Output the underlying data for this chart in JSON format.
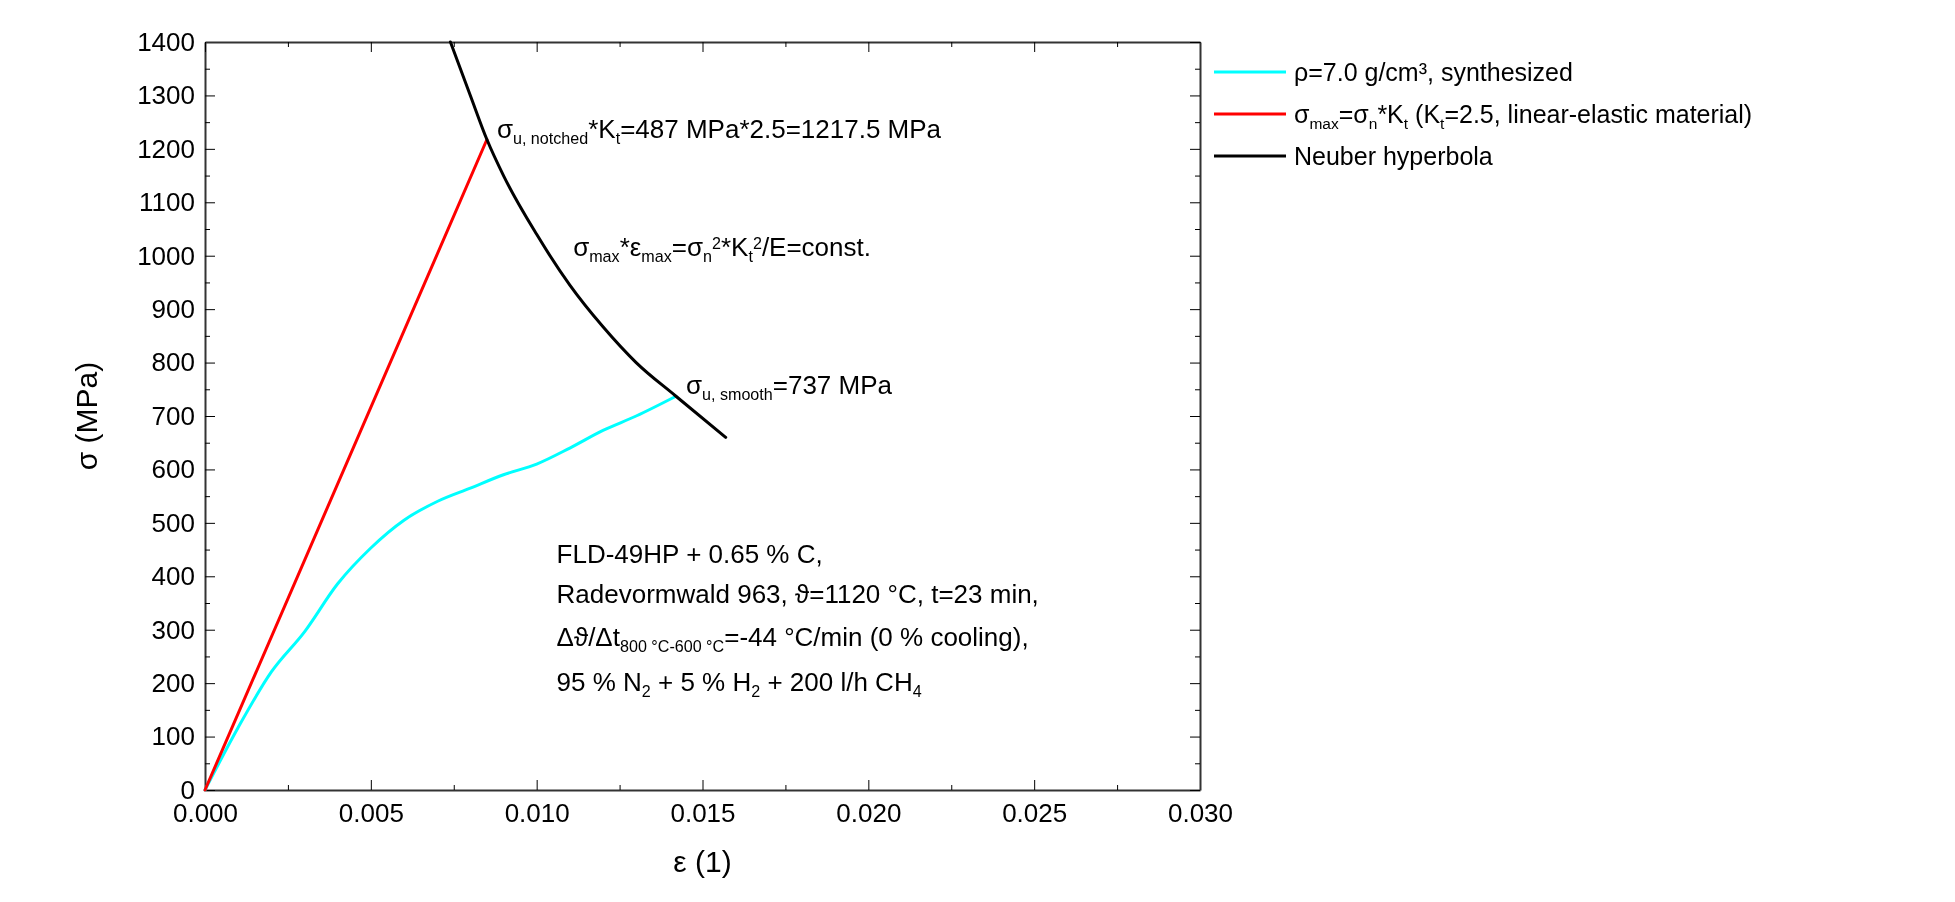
{
  "chart_data": {
    "type": "line",
    "xlabel": "ε (1)",
    "ylabel": "σ (MPa)",
    "xlim": [
      0,
      0.03
    ],
    "ylim": [
      0,
      1400
    ],
    "xticks": [
      {
        "value": 0,
        "label": "0.000"
      },
      {
        "value": 0.0025,
        "label": null
      },
      {
        "value": 0.005,
        "label": "0.005"
      },
      {
        "value": 0.0075,
        "label": null
      },
      {
        "value": 0.01,
        "label": "0.010"
      },
      {
        "value": 0.0125,
        "label": null
      },
      {
        "value": 0.015,
        "label": "0.015"
      },
      {
        "value": 0.0175,
        "label": null
      },
      {
        "value": 0.02,
        "label": "0.020"
      },
      {
        "value": 0.0225,
        "label": null
      },
      {
        "value": 0.025,
        "label": "0.025"
      },
      {
        "value": 0.0275,
        "label": null
      },
      {
        "value": 0.03,
        "label": "0.030"
      }
    ],
    "yticks": [
      0,
      {
        "value": 50,
        "label": null
      },
      100,
      {
        "value": 150,
        "label": null
      },
      200,
      {
        "value": 250,
        "label": null
      },
      300,
      {
        "value": 350,
        "label": null
      },
      400,
      {
        "value": 450,
        "label": null
      },
      500,
      {
        "value": 550,
        "label": null
      },
      600,
      {
        "value": 650,
        "label": null
      },
      700,
      {
        "value": 750,
        "label": null
      },
      800,
      {
        "value": 850,
        "label": null
      },
      900,
      {
        "value": 950,
        "label": null
      },
      1000,
      {
        "value": 1050,
        "label": null
      },
      1100,
      {
        "value": 1150,
        "label": null
      },
      1200,
      {
        "value": 1250,
        "label": null
      },
      1300,
      {
        "value": 1350,
        "label": null
      },
      1400
    ],
    "grid": false,
    "legend": "right",
    "marker": "none",
    "line_style": "solid",
    "series": [
      {
        "name": "ρ=7.0 g/cm³, synthesized",
        "color": "#00ffff",
        "x": [
          0,
          0.001,
          0.002,
          0.003,
          0.004,
          0.005,
          0.006,
          0.007,
          0.008,
          0.009,
          0.01,
          0.011,
          0.012,
          0.013,
          0.0142
        ],
        "values": [
          0,
          117,
          221,
          296,
          386,
          453,
          505,
          540,
          565,
          590,
          610,
          640,
          673,
          700,
          737
        ]
      },
      {
        "name": "σ$_{max}$=σ$_{n}$*K$_{t}$ (K$_{t}$=2.5, linear-elastic material)",
        "color": "#ff0000",
        "x": [
          0,
          0.0085
        ],
        "values": [
          0,
          1217.5
        ]
      },
      {
        "name": "Neuber hyperbola",
        "color": "#000000",
        "x": [
          0.0074,
          0.008,
          0.0085,
          0.009,
          0.01,
          0.011,
          0.012,
          0.013,
          0.0142,
          0.0157
        ],
        "values": [
          1400,
          1300,
          1217.5,
          1150,
          1040,
          945,
          867,
          800,
          737,
          660
        ]
      }
    ],
    "annotations": [
      {
        "text": "σ$_{u, notched}$*K$_{t}$=487 MPa*2.5=1217.5 MPa",
        "x": 0.0085,
        "y": 1217.5
      },
      "σ$_{max}$*ε$_{max}$=σ$_{n}$$^{2}$*K$_{t}$$^{2}$/E=const.",
      {
        "text": "σ$_{u, smooth}$=737 MPa",
        "x": 0.0142,
        "y": 737
      },
      "FLD-49HP + 0.65 % C,",
      "Radevormwald 963, ϑ=1120 °C, t=23 min,",
      "Δϑ/Δt$_{800 °C-600 °C}$=-44 °C/min (0 % cooling),",
      "95 % N$_{2}$ + 5 % H$_{2}$ + 200 l/h CH$_{4}$"
    ]
  }
}
